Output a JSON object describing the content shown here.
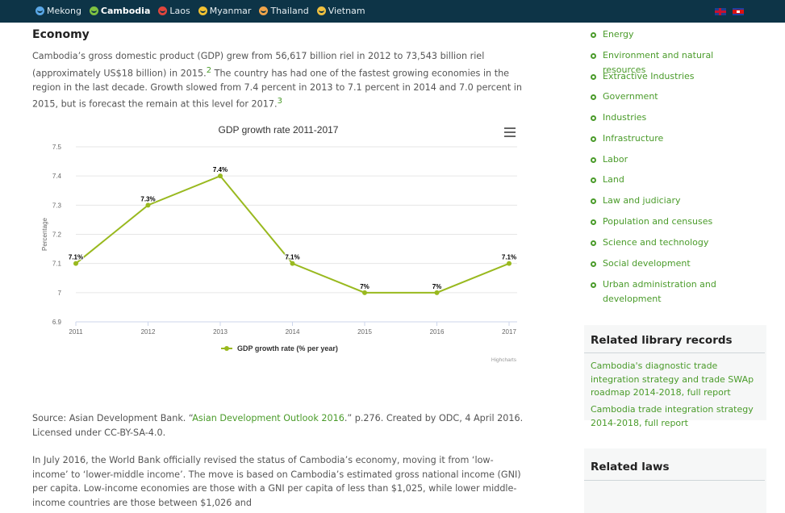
{
  "nav": {
    "items": [
      {
        "label": "Mekong",
        "color": "#5aa7e6",
        "active": false
      },
      {
        "label": "Cambodia",
        "color": "#7fc241",
        "active": true
      },
      {
        "label": "Laos",
        "color": "#e0463d",
        "active": false
      },
      {
        "label": "Myanmar",
        "color": "#f1c232",
        "active": false
      },
      {
        "label": "Thailand",
        "color": "#f0a44a",
        "active": false
      },
      {
        "label": "Vietnam",
        "color": "#f0c040",
        "active": false
      }
    ]
  },
  "main": {
    "section_title": "Economy",
    "para1_text": "Cambodia’s gross domestic product (GDP) grew from 56,617 billion riel in 2012 to 73,543 billion riel (approximately US$18 billion) in 2015.",
    "para1_ref1": "2",
    "para1_text2": " The country has had one of the fastest growing economies in the region in the last decade. Growth slowed from 7.4 percent in 2013 to 7.1 percent in 2014 and 7.0 percent in 2015, but is forecast the remain at this level for 2017.",
    "para1_ref2": "3",
    "source_prefix": "Source: Asian Development Bank. “",
    "source_link": "Asian Development Outlook 2016",
    "source_suffix": ".” p.276. Created by ODC, 4 April 2016. Licensed under CC-BY-SA-4.0.",
    "para3_text": "In July 2016, the World Bank officially revised the status of Cambodia’s economy, moving it from ‘low-income’ to ‘lower-middle income’. The move is based on Cambodia’s estimated gross national income (GNI) per capita. Low-income economies are those with a GNI per capita of less than $1,025, while lower middle-income countries are those between $1,026 and"
  },
  "chart_data": {
    "type": "line",
    "title": "GDP growth rate 2011-2017",
    "ylabel": "Percentage",
    "xlabel": "",
    "categories": [
      "2011",
      "2012",
      "2013",
      "2014",
      "2015",
      "2016",
      "2017"
    ],
    "series": [
      {
        "name": "GDP growth rate (% per year)",
        "color": "#99b91f",
        "values": [
          7.1,
          7.3,
          7.4,
          7.1,
          7.0,
          7.0,
          7.1
        ],
        "labels": [
          "7.1%",
          "7.3%",
          "7.4%",
          "7.1%",
          "7%",
          "7%",
          "7.1%"
        ]
      }
    ],
    "ylim": [
      6.9,
      7.5
    ],
    "yticks": [
      "6.9",
      "7",
      "7.1",
      "7.2",
      "7.3",
      "7.4",
      "7.5"
    ],
    "grid": true,
    "legend": "bottom-center",
    "credits": "Highcharts"
  },
  "sidebar": {
    "topics": [
      "Energy",
      "Environment and natural resources",
      "Extractive Industries",
      "Government",
      "Industries",
      "Infrastructure",
      "Labor",
      "Land",
      "Law and judiciary",
      "Population and censuses",
      "Science and technology",
      "Social development",
      "Urban administration and development"
    ],
    "library_title": "Related library records",
    "library_records": [
      "Cambodia's diagnostic trade integration strategy and trade SWAp roadmap 2014-2018, full report",
      "Cambodia trade integration strategy 2014-2018, full report"
    ],
    "laws_title": "Related laws"
  }
}
